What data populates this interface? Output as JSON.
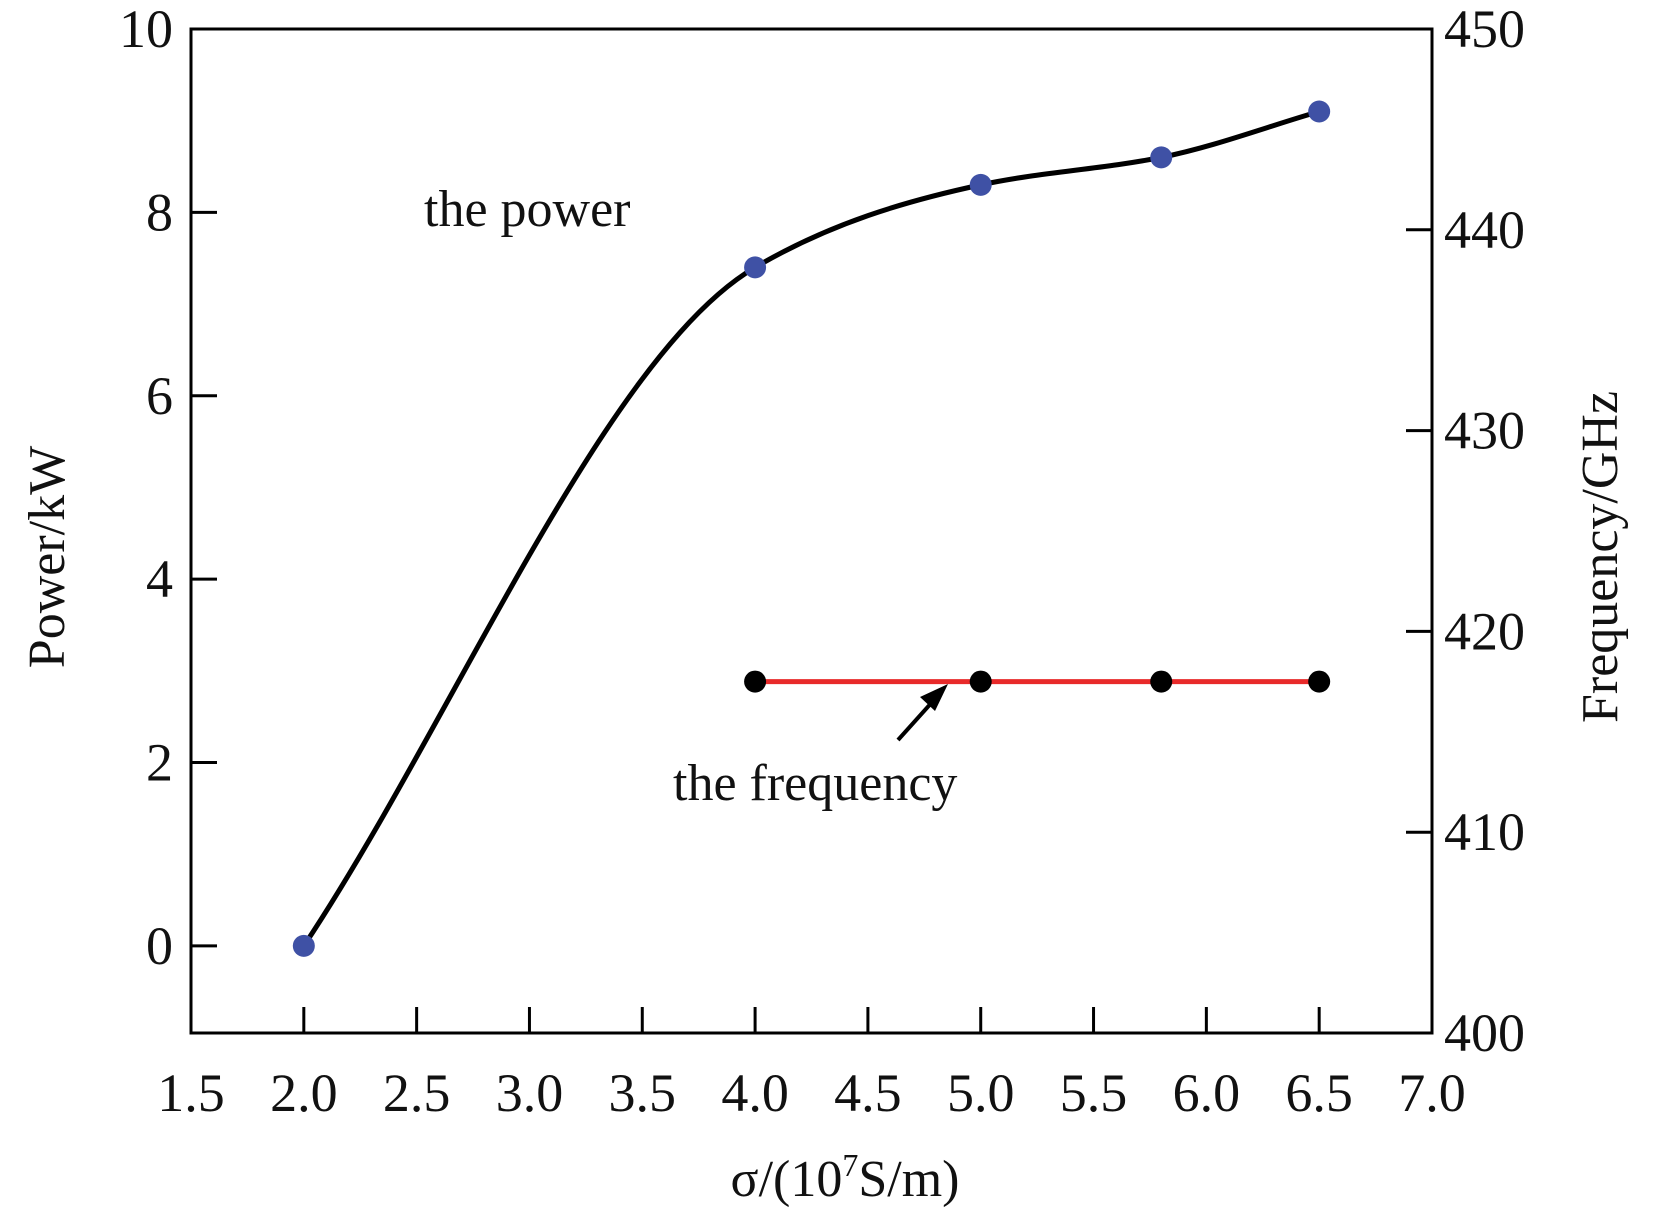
{
  "chart_data": {
    "type": "line",
    "xlabel_prefix": "σ/(10",
    "xlabel_sup": "7",
    "xlabel_suffix": "S/m)",
    "ylabel_left": "Power/kW",
    "ylabel_right": "Frequency/GHz",
    "x_ticks": [
      1.5,
      2.0,
      2.5,
      3.0,
      3.5,
      4.0,
      4.5,
      5.0,
      5.5,
      6.0,
      6.5,
      7.0
    ],
    "x_tick_labels": [
      "1.5",
      "2.0",
      "2.5",
      "3.0",
      "3.5",
      "4.0",
      "4.5",
      "5.0",
      "5.5",
      "6.0",
      "6.5",
      "7.0"
    ],
    "xlim": [
      1.5,
      7.0
    ],
    "y_left_ticks": [
      0,
      2,
      4,
      6,
      8,
      10
    ],
    "y_left_tick_labels": [
      "0",
      "2",
      "4",
      "6",
      "8",
      "10"
    ],
    "ylim_left": [
      -0.95,
      10
    ],
    "y_right_ticks": [
      400,
      410,
      420,
      430,
      440,
      450
    ],
    "y_right_tick_labels": [
      "400",
      "410",
      "420",
      "430",
      "440",
      "450"
    ],
    "ylim_right": [
      400,
      450
    ],
    "grid": false,
    "series": [
      {
        "axis": "left",
        "x": [
          2.0,
          4.0,
          5.0,
          5.8,
          6.5
        ],
        "y": [
          0.0,
          7.4,
          8.3,
          8.6,
          9.1
        ],
        "line_color": "#000000",
        "marker_color": "#3f51a5"
      },
      {
        "axis": "right",
        "x": [
          4.0,
          5.0,
          5.8,
          6.5
        ],
        "y": [
          417.5,
          417.5,
          417.5,
          417.5
        ],
        "line_color": "#e82a2a",
        "marker_color": "#000000"
      }
    ],
    "annotations": [
      {
        "text": "the power"
      },
      {
        "text": "the frequency"
      }
    ]
  }
}
